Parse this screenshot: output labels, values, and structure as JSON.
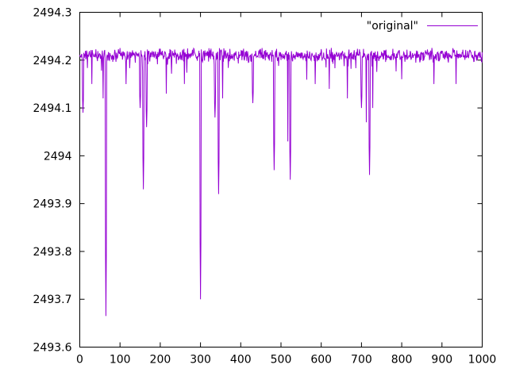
{
  "chart_data": {
    "type": "line",
    "title": "",
    "xlabel": "",
    "ylabel": "",
    "legend": {
      "label": "\"original\"",
      "position": "top-right"
    },
    "series_name": "original",
    "color": "#9400d3",
    "axis_color": "#000000",
    "background_color": "#ffffff",
    "xlim": [
      0,
      1000
    ],
    "ylim": [
      2493.6,
      2494.3
    ],
    "x_ticks": [
      {
        "v": 0,
        "label": "0"
      },
      {
        "v": 100,
        "label": "100"
      },
      {
        "v": 200,
        "label": "200"
      },
      {
        "v": 300,
        "label": "300"
      },
      {
        "v": 400,
        "label": "400"
      },
      {
        "v": 500,
        "label": "500"
      },
      {
        "v": 600,
        "label": "600"
      },
      {
        "v": 700,
        "label": "700"
      },
      {
        "v": 800,
        "label": "800"
      },
      {
        "v": 900,
        "label": "900"
      },
      {
        "v": 1000,
        "label": "1000"
      }
    ],
    "y_ticks": [
      {
        "v": 2493.6,
        "label": "2493.6"
      },
      {
        "v": 2493.7,
        "label": "2493.7"
      },
      {
        "v": 2493.8,
        "label": "2493.8"
      },
      {
        "v": 2493.9,
        "label": "2493.9"
      },
      {
        "v": 2494.0,
        "label": "2494"
      },
      {
        "v": 2494.1,
        "label": "2494.1"
      },
      {
        "v": 2494.2,
        "label": "2494.2"
      },
      {
        "v": 2494.3,
        "label": "2494.3"
      }
    ],
    "grid": false,
    "n_points": 1000,
    "baseline": 2494.21,
    "noise": {
      "seed": 42,
      "amplitude": 0.016,
      "spike_prob": 0.05,
      "spike_extra": 0.04
    },
    "spikes": [
      {
        "x": 8,
        "y": 2494.09,
        "w": 2
      },
      {
        "x": 30,
        "y": 2494.15,
        "w": 1
      },
      {
        "x": 58,
        "y": 2494.12,
        "w": 1
      },
      {
        "x": 65,
        "y": 2493.665,
        "w": 2
      },
      {
        "x": 115,
        "y": 2494.15,
        "w": 1
      },
      {
        "x": 150,
        "y": 2494.1,
        "w": 2
      },
      {
        "x": 158,
        "y": 2493.93,
        "w": 2
      },
      {
        "x": 166,
        "y": 2494.06,
        "w": 2
      },
      {
        "x": 215,
        "y": 2494.13,
        "w": 1
      },
      {
        "x": 260,
        "y": 2494.15,
        "w": 1
      },
      {
        "x": 300,
        "y": 2493.7,
        "w": 2
      },
      {
        "x": 336,
        "y": 2494.08,
        "w": 2
      },
      {
        "x": 345,
        "y": 2493.92,
        "w": 2
      },
      {
        "x": 355,
        "y": 2494.12,
        "w": 1
      },
      {
        "x": 430,
        "y": 2494.11,
        "w": 2
      },
      {
        "x": 483,
        "y": 2493.97,
        "w": 2
      },
      {
        "x": 517,
        "y": 2494.03,
        "w": 1
      },
      {
        "x": 523,
        "y": 2493.95,
        "w": 2
      },
      {
        "x": 585,
        "y": 2494.15,
        "w": 1
      },
      {
        "x": 620,
        "y": 2494.14,
        "w": 1
      },
      {
        "x": 665,
        "y": 2494.12,
        "w": 1
      },
      {
        "x": 700,
        "y": 2494.1,
        "w": 2
      },
      {
        "x": 712,
        "y": 2494.07,
        "w": 1
      },
      {
        "x": 720,
        "y": 2493.96,
        "w": 2
      },
      {
        "x": 728,
        "y": 2494.1,
        "w": 1
      },
      {
        "x": 800,
        "y": 2494.16,
        "w": 1
      },
      {
        "x": 880,
        "y": 2494.15,
        "w": 1
      },
      {
        "x": 935,
        "y": 2494.15,
        "w": 1
      }
    ]
  }
}
